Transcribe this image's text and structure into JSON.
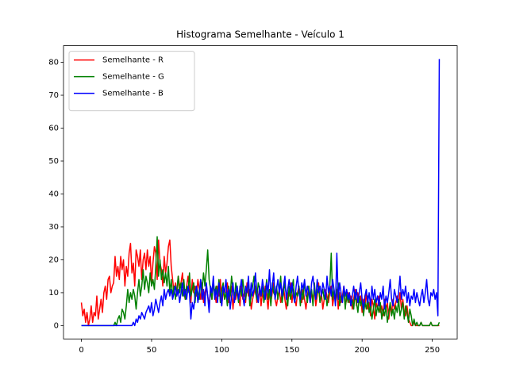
{
  "chart_data": {
    "type": "line",
    "title": "Histograma Semelhante - Veículo 1",
    "x": [
      0,
      1,
      2,
      3,
      4,
      5,
      6,
      7,
      8,
      9,
      10,
      11,
      12,
      13,
      14,
      15,
      16,
      17,
      18,
      19,
      20,
      21,
      22,
      23,
      24,
      25,
      26,
      27,
      28,
      29,
      30,
      31,
      32,
      33,
      34,
      35,
      36,
      37,
      38,
      39,
      40,
      41,
      42,
      43,
      44,
      45,
      46,
      47,
      48,
      49,
      50,
      51,
      52,
      53,
      54,
      55,
      56,
      57,
      58,
      59,
      60,
      61,
      62,
      63,
      64,
      65,
      66,
      67,
      68,
      69,
      70,
      71,
      72,
      73,
      74,
      75,
      76,
      77,
      78,
      79,
      80,
      81,
      82,
      83,
      84,
      85,
      86,
      87,
      88,
      89,
      90,
      91,
      92,
      93,
      94,
      95,
      96,
      97,
      98,
      99,
      100,
      101,
      102,
      103,
      104,
      105,
      106,
      107,
      108,
      109,
      110,
      111,
      112,
      113,
      114,
      115,
      116,
      117,
      118,
      119,
      120,
      121,
      122,
      123,
      124,
      125,
      126,
      127,
      128,
      129,
      130,
      131,
      132,
      133,
      134,
      135,
      136,
      137,
      138,
      139,
      140,
      141,
      142,
      143,
      144,
      145,
      146,
      147,
      148,
      149,
      150,
      151,
      152,
      153,
      154,
      155,
      156,
      157,
      158,
      159,
      160,
      161,
      162,
      163,
      164,
      165,
      166,
      167,
      168,
      169,
      170,
      171,
      172,
      173,
      174,
      175,
      176,
      177,
      178,
      179,
      180,
      181,
      182,
      183,
      184,
      185,
      186,
      187,
      188,
      189,
      190,
      191,
      192,
      193,
      194,
      195,
      196,
      197,
      198,
      199,
      200,
      201,
      202,
      203,
      204,
      205,
      206,
      207,
      208,
      209,
      210,
      211,
      212,
      213,
      214,
      215,
      216,
      217,
      218,
      219,
      220,
      221,
      222,
      223,
      224,
      225,
      226,
      227,
      228,
      229,
      230,
      231,
      232,
      233,
      234,
      235,
      236,
      237,
      238,
      239,
      240,
      241,
      242,
      243,
      244,
      245,
      246,
      247,
      248,
      249,
      250,
      251,
      252,
      253,
      254,
      255
    ],
    "series": [
      {
        "name": "Semelhante - R",
        "color": "#ff0000",
        "values": [
          7,
          3,
          5,
          1,
          4,
          0,
          2,
          6,
          1,
          4,
          3,
          9,
          2,
          5,
          8,
          4,
          10,
          12,
          8,
          14,
          15,
          10,
          12,
          13,
          21,
          15,
          18,
          14,
          21,
          17,
          20,
          12,
          18,
          15,
          22,
          25,
          16,
          19,
          12,
          23,
          21,
          18,
          23,
          14,
          20,
          22,
          17,
          23,
          18,
          21,
          13,
          19,
          24,
          22,
          14,
          26,
          19,
          17,
          12,
          21,
          16,
          19,
          24,
          26,
          18,
          14,
          10,
          13,
          9,
          15,
          12,
          13,
          16,
          10,
          8,
          12,
          15,
          11,
          7,
          14,
          10,
          12,
          9,
          14,
          11,
          8,
          13,
          7,
          10,
          12,
          9,
          6,
          11,
          8,
          13,
          10,
          7,
          12,
          9,
          14,
          6,
          11,
          8,
          10,
          13,
          7,
          9,
          12,
          5,
          10,
          8,
          11,
          9,
          6,
          12,
          8,
          10,
          7,
          13,
          9,
          11,
          5,
          8,
          10,
          12,
          7,
          9,
          11,
          6,
          10,
          8,
          12,
          9,
          5,
          11,
          7,
          10,
          13,
          8,
          6,
          9,
          11,
          7,
          10,
          12,
          8,
          5,
          10,
          9,
          13,
          7,
          11,
          8,
          6,
          10,
          12,
          9,
          7,
          11,
          8,
          5,
          9,
          12,
          7,
          10,
          8,
          11,
          6,
          9,
          13,
          7,
          10,
          5,
          8,
          11,
          9,
          7,
          10,
          12,
          6,
          9,
          8,
          11,
          5,
          10,
          7,
          9,
          12,
          6,
          8,
          10,
          7,
          9,
          5,
          8,
          11,
          6,
          10,
          7,
          9,
          4,
          8,
          6,
          10,
          5,
          7,
          3,
          8,
          6,
          2,
          7,
          5,
          9,
          4,
          6,
          3,
          8,
          5,
          7,
          2,
          6,
          4,
          8,
          5,
          7,
          9,
          6,
          10,
          5,
          8,
          4,
          3,
          6,
          2,
          1,
          0,
          0,
          1,
          0,
          0,
          0,
          0,
          1,
          0,
          0,
          0,
          0,
          0,
          0,
          1,
          0,
          0,
          0,
          0,
          0,
          0
        ]
      },
      {
        "name": "Semelhante - G",
        "color": "#008000",
        "values": [
          0,
          0,
          0,
          0,
          0,
          0,
          0,
          0,
          0,
          0,
          0,
          0,
          0,
          0,
          0,
          0,
          0,
          0,
          0,
          0,
          0,
          0,
          0,
          0,
          1,
          0,
          2,
          3,
          1,
          5,
          4,
          2,
          6,
          11,
          7,
          10,
          8,
          11,
          9,
          5,
          10,
          14,
          9,
          12,
          17,
          11,
          15,
          13,
          10,
          16,
          12,
          14,
          11,
          18,
          27,
          15,
          20,
          14,
          17,
          13,
          16,
          12,
          18,
          10,
          14,
          9,
          12,
          8,
          11,
          15,
          10,
          13,
          9,
          14,
          8,
          12,
          10,
          16,
          9,
          11,
          13,
          7,
          12,
          10,
          8,
          14,
          11,
          16,
          12,
          17,
          23,
          14,
          11,
          8,
          13,
          10,
          12,
          9,
          14,
          7,
          11,
          13,
          8,
          10,
          6,
          12,
          9,
          15,
          11,
          8,
          13,
          10,
          7,
          12,
          9,
          14,
          10,
          8,
          11,
          13,
          6,
          9,
          12,
          15,
          10,
          8,
          13,
          11,
          9,
          12,
          7,
          10,
          14,
          8,
          11,
          6,
          13,
          10,
          9,
          12,
          8,
          11,
          15,
          7,
          10,
          13,
          9,
          6,
          12,
          8,
          11,
          14,
          7,
          10,
          9,
          12,
          6,
          11,
          8,
          13,
          10,
          7,
          12,
          9,
          11,
          6,
          13,
          8,
          10,
          12,
          7,
          9,
          11,
          8,
          10,
          6,
          9,
          12,
          22,
          8,
          11,
          7,
          10,
          13,
          6,
          9,
          8,
          11,
          5,
          10,
          7,
          9,
          6,
          8,
          5,
          10,
          7,
          4,
          9,
          6,
          8,
          3,
          7,
          5,
          9,
          4,
          6,
          2,
          5,
          8,
          3,
          6,
          4,
          7,
          2,
          5,
          3,
          6,
          1,
          4,
          7,
          3,
          5,
          2,
          6,
          4,
          8,
          3,
          5,
          7,
          2,
          6,
          4,
          1,
          5,
          3,
          0,
          2,
          0,
          1,
          0,
          0,
          1,
          0,
          0,
          0,
          0,
          0,
          0,
          1,
          0,
          0,
          0,
          0,
          0,
          1
        ]
      },
      {
        "name": "Semelhante - B",
        "color": "#0000ff",
        "values": [
          0,
          0,
          0,
          0,
          0,
          0,
          0,
          0,
          0,
          0,
          0,
          0,
          0,
          0,
          0,
          0,
          0,
          0,
          0,
          0,
          0,
          0,
          0,
          0,
          0,
          0,
          0,
          0,
          0,
          0,
          0,
          0,
          0,
          0,
          0,
          0,
          0,
          1,
          0,
          2,
          1,
          3,
          2,
          4,
          3,
          2,
          4,
          5,
          6,
          4,
          7,
          3,
          5,
          8,
          6,
          4,
          7,
          9,
          6,
          11,
          8,
          10,
          11,
          9,
          11,
          8,
          10,
          12,
          9,
          11,
          7,
          10,
          13,
          9,
          11,
          8,
          12,
          10,
          2,
          7,
          5,
          9,
          12,
          7,
          10,
          14,
          8,
          11,
          6,
          13,
          9,
          4,
          12,
          10,
          15,
          8,
          11,
          7,
          13,
          9,
          6,
          12,
          10,
          14,
          8,
          11,
          5,
          9,
          13,
          7,
          10,
          12,
          8,
          11,
          14,
          9,
          6,
          12,
          10,
          15,
          8,
          13,
          9,
          11,
          16,
          10,
          7,
          12,
          9,
          14,
          11,
          8,
          13,
          10,
          17,
          9,
          12,
          16,
          8,
          11,
          14,
          10,
          13,
          9,
          12,
          15,
          8,
          11,
          14,
          10,
          13,
          9,
          7,
          12,
          15,
          10,
          8,
          13,
          11,
          14,
          9,
          12,
          10,
          7,
          13,
          15,
          11,
          8,
          14,
          10,
          12,
          9,
          13,
          11,
          8,
          15,
          10,
          12,
          9,
          14,
          11,
          6,
          22,
          8,
          13,
          10,
          7,
          12,
          9,
          11,
          8,
          10,
          6,
          9,
          12,
          8,
          11,
          7,
          10,
          13,
          8,
          5,
          9,
          11,
          7,
          10,
          6,
          12,
          8,
          11,
          7,
          9,
          6,
          10,
          8,
          12,
          5,
          9,
          7,
          10,
          14,
          8,
          6,
          11,
          9,
          7,
          10,
          15,
          8,
          11,
          9,
          12,
          7,
          10,
          6,
          9,
          8,
          11,
          7,
          10,
          8,
          6,
          9,
          11,
          7,
          10,
          14,
          8,
          6,
          10,
          9,
          11,
          8,
          10,
          3,
          81
        ]
      }
    ],
    "xlim": [
      -12.75,
      267.75
    ],
    "xticks": [
      0,
      50,
      100,
      150,
      200,
      250
    ],
    "ylim": [
      -4.05,
      85.05
    ],
    "yticks": [
      0,
      10,
      20,
      30,
      40,
      50,
      60,
      70,
      80
    ],
    "legend": "upper left"
  }
}
